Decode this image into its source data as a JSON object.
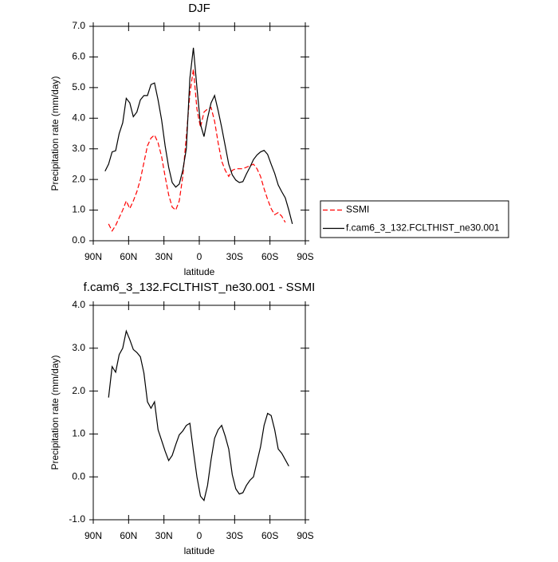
{
  "chart_data": [
    {
      "type": "line",
      "title": "DJF",
      "x_label": "latitude",
      "y_label": "Precipitation rate (mm/day)",
      "x": [
        80,
        77,
        74,
        71,
        68,
        65,
        62,
        59,
        56,
        53,
        50,
        47,
        44,
        41,
        38,
        35,
        32,
        29,
        26,
        23,
        20,
        17,
        14,
        11,
        8,
        5,
        2,
        -1,
        -4,
        -7,
        -10,
        -13,
        -16,
        -19,
        -22,
        -25,
        -28,
        -31,
        -34,
        -37,
        -40,
        -43,
        -46,
        -49,
        -52,
        -55,
        -58,
        -61,
        -64,
        -67,
        -70,
        -73,
        -76,
        -79
      ],
      "series": [
        {
          "name": "SSMI",
          "color": "#ff0000",
          "line_style": "dashed",
          "values": [
            null,
            0.55,
            0.32,
            0.5,
            0.75,
            1.0,
            1.3,
            1.05,
            1.3,
            1.6,
            2.0,
            2.55,
            3.1,
            3.35,
            3.45,
            3.2,
            2.75,
            2.1,
            1.5,
            1.1,
            1.0,
            1.3,
            2.1,
            3.4,
            4.8,
            5.6,
            4.3,
            3.7,
            4.2,
            4.3,
            4.35,
            3.9,
            3.2,
            2.6,
            2.3,
            2.1,
            2.3,
            2.35,
            2.35,
            2.35,
            2.4,
            2.45,
            2.5,
            2.35,
            2.1,
            1.7,
            1.35,
            1.05,
            0.85,
            0.92,
            0.8,
            0.6,
            null,
            null
          ]
        },
        {
          "name": "f.cam6_3_132.FCLTHIST_ne30.001",
          "color": "#000000",
          "line_style": "solid",
          "values": [
            2.27,
            2.5,
            2.9,
            2.94,
            3.5,
            3.85,
            4.65,
            4.5,
            4.05,
            4.2,
            4.6,
            4.74,
            4.74,
            5.1,
            5.15,
            4.6,
            3.95,
            3.1,
            2.4,
            1.9,
            1.75,
            1.85,
            2.3,
            3.0,
            5.3,
            6.3,
            5.0,
            3.8,
            3.4,
            4.0,
            4.5,
            4.74,
            4.25,
            3.7,
            3.1,
            2.5,
            2.15,
            1.98,
            1.9,
            1.93,
            2.18,
            2.4,
            2.65,
            2.8,
            2.9,
            2.95,
            2.82,
            2.5,
            2.2,
            1.82,
            1.6,
            1.4,
            1.0,
            0.55
          ]
        }
      ],
      "xlim": [
        90,
        -90
      ],
      "xticks": [
        {
          "value": 90,
          "label": "90N"
        },
        {
          "value": 60,
          "label": "60N"
        },
        {
          "value": 30,
          "label": "30N"
        },
        0,
        {
          "value": -30,
          "label": "30S"
        },
        {
          "value": -60,
          "label": "60S"
        },
        {
          "value": -90,
          "label": "90S"
        }
      ],
      "ylim": [
        0,
        7
      ],
      "yticks": [
        {
          "value": 0,
          "label": "0.0"
        },
        {
          "value": 1,
          "label": "1.0"
        },
        {
          "value": 2,
          "label": "2.0"
        },
        {
          "value": 3,
          "label": "3.0"
        },
        {
          "value": 4,
          "label": "4.0"
        },
        {
          "value": 5,
          "label": "5.0"
        },
        {
          "value": 6,
          "label": "6.0"
        },
        {
          "value": 7,
          "label": "7.0"
        }
      ],
      "legend": "outside-right"
    },
    {
      "type": "line",
      "title": "f.cam6_3_132.FCLTHIST_ne30.001 - SSMI",
      "x_label": "latitude",
      "y_label": "Precipitation rate (mm/day)",
      "x": [
        77,
        74,
        71,
        68,
        65,
        62,
        59,
        56,
        53,
        50,
        47,
        44,
        41,
        38,
        35,
        32,
        29,
        26,
        23,
        20,
        17,
        14,
        11,
        8,
        5,
        2,
        -1,
        -4,
        -7,
        -10,
        -13,
        -16,
        -19,
        -22,
        -25,
        -28,
        -31,
        -34,
        -37,
        -40,
        -43,
        -46,
        -49,
        -52,
        -55,
        -58,
        -61,
        -64,
        -67,
        -70,
        -73,
        -76
      ],
      "values": [
        1.85,
        2.57,
        2.44,
        2.85,
        3.0,
        3.4,
        3.2,
        2.97,
        2.9,
        2.8,
        2.42,
        1.75,
        1.6,
        1.75,
        1.1,
        0.85,
        0.6,
        0.38,
        0.5,
        0.75,
        0.98,
        1.07,
        1.2,
        1.25,
        0.6,
        0.0,
        -0.45,
        -0.55,
        -0.2,
        0.4,
        0.9,
        1.1,
        1.2,
        0.95,
        0.65,
        0.05,
        -0.28,
        -0.4,
        -0.37,
        -0.2,
        -0.08,
        0.0,
        0.35,
        0.7,
        1.2,
        1.48,
        1.43,
        1.1,
        0.65,
        0.55,
        0.4,
        0.25
      ],
      "color": "#000000",
      "xlim": [
        90,
        -90
      ],
      "xticks": [
        {
          "value": 90,
          "label": "90N"
        },
        {
          "value": 60,
          "label": "60N"
        },
        {
          "value": 30,
          "label": "30N"
        },
        0,
        {
          "value": -30,
          "label": "30S"
        },
        {
          "value": -60,
          "label": "60S"
        },
        {
          "value": -90,
          "label": "90S"
        }
      ],
      "ylim": [
        -1,
        4
      ],
      "yticks": [
        {
          "value": -1,
          "label": "-1.0"
        },
        {
          "value": 0,
          "label": "0.0"
        },
        {
          "value": 1,
          "label": "1.0"
        },
        {
          "value": 2,
          "label": "2.0"
        },
        {
          "value": 3,
          "label": "3.0"
        },
        {
          "value": 4,
          "label": "4.0"
        }
      ]
    }
  ]
}
